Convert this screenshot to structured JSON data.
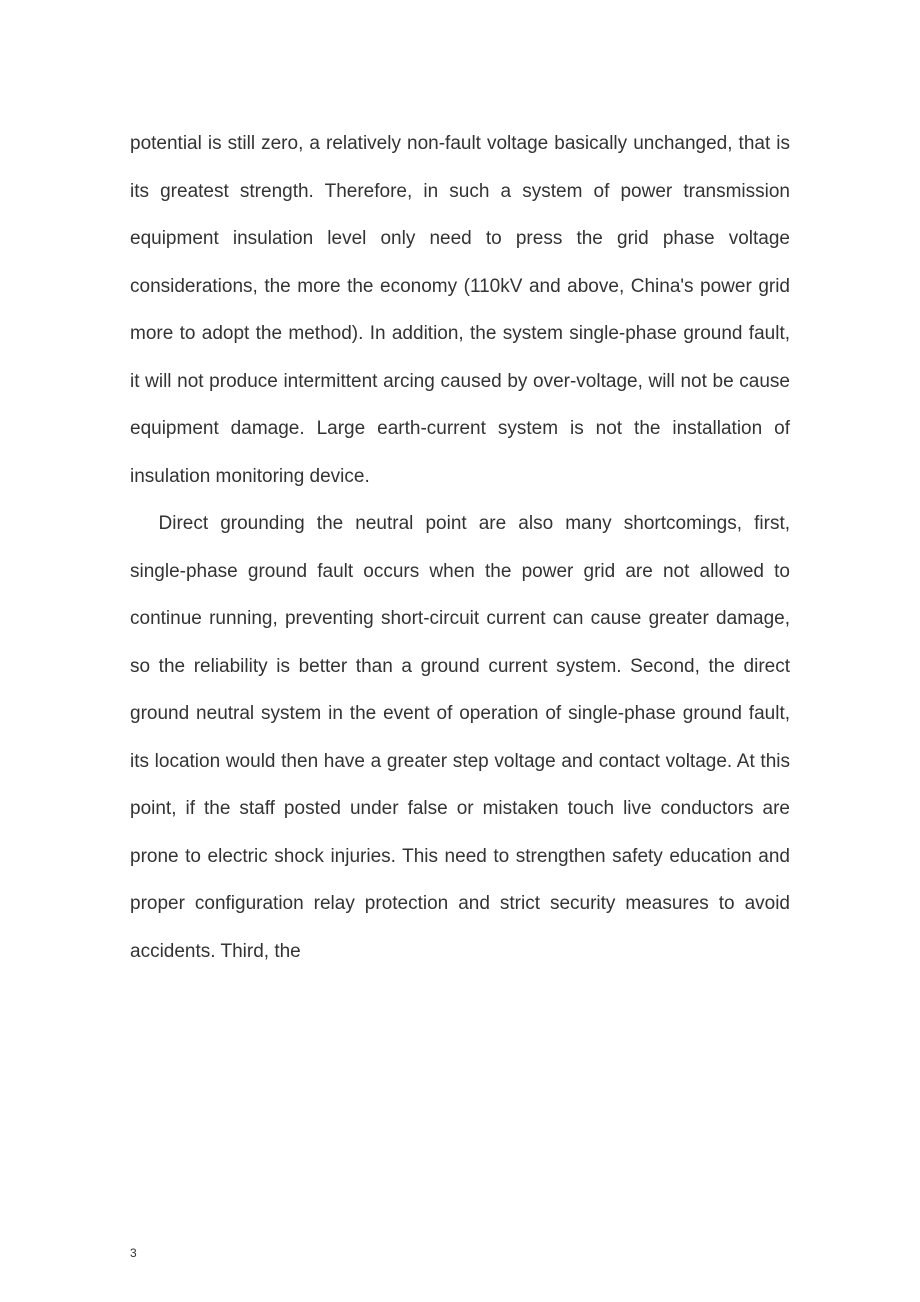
{
  "document": {
    "paragraphs": [
      "potential is still zero, a relatively non-fault voltage basically unchanged, that is its greatest strength. Therefore, in such a system of power transmission equipment insulation level only need to press the grid phase voltage considerations, the more the economy (110kV and above, China's power grid more to adopt the method). In addition, the system single-phase ground fault, it will not produce intermittent arcing caused by over-voltage, will not be cause equipment damage. Large earth-current system is not the installation of insulation monitoring device.",
      "Direct grounding the neutral point are also many shortcomings, first, single-phase ground fault occurs when the power grid are not allowed to continue running, preventing short-circuit current can cause greater damage, so the reliability is better than a ground current system. Second, the direct ground neutral system in the event of operation of single-phase ground fault, its location would then have a greater step voltage and contact voltage. At this point, if the staff posted under false or mistaken touch live conductors are prone to electric shock injuries. This need to strengthen safety education and proper configuration relay protection and strict security measures to avoid accidents. Third, the"
    ],
    "page_number": "3",
    "text_color": "#333333",
    "background_color": "#ffffff",
    "font_size": 19,
    "line_height": 2.5
  }
}
